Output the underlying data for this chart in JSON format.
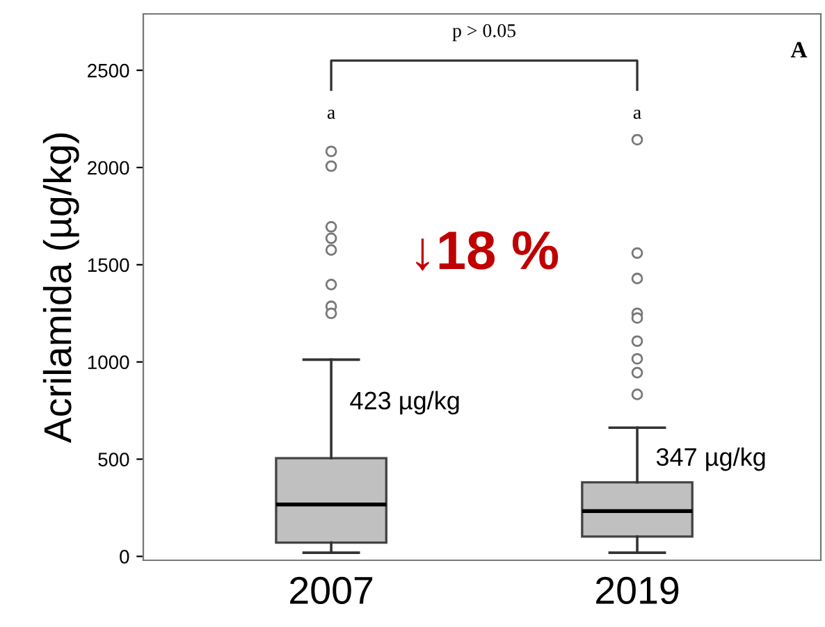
{
  "chart_data": {
    "type": "box",
    "ylabel": "Acrilamida (µg/kg)",
    "categories": [
      "2007",
      "2019"
    ],
    "boxes": [
      {
        "low": 19,
        "q1": 71,
        "median": 267,
        "q3": 505,
        "high": 1012,
        "outliers": [
          2083,
          2007,
          1695,
          1636,
          1576,
          1398,
          1286,
          1250
        ]
      },
      {
        "low": 19,
        "q1": 102,
        "median": 233,
        "q3": 381,
        "high": 662,
        "outliers": [
          2143,
          1560,
          1429,
          1250,
          1226,
          1107,
          1016,
          945,
          833
        ]
      }
    ],
    "color": "#c0c0c0",
    "ylim": [
      -20,
      2790
    ],
    "yticks": [
      0,
      500,
      1000,
      1500,
      2000,
      2500
    ],
    "grid": false,
    "annotations": [
      "a",
      "a",
      {
        "text": "423 µg/kg",
        "x": "2007",
        "y": 790
      },
      {
        "text": "347 µg/kg",
        "x": "2019",
        "y": 500
      },
      "↓18 %",
      "p > 0.05",
      "A"
    ]
  }
}
